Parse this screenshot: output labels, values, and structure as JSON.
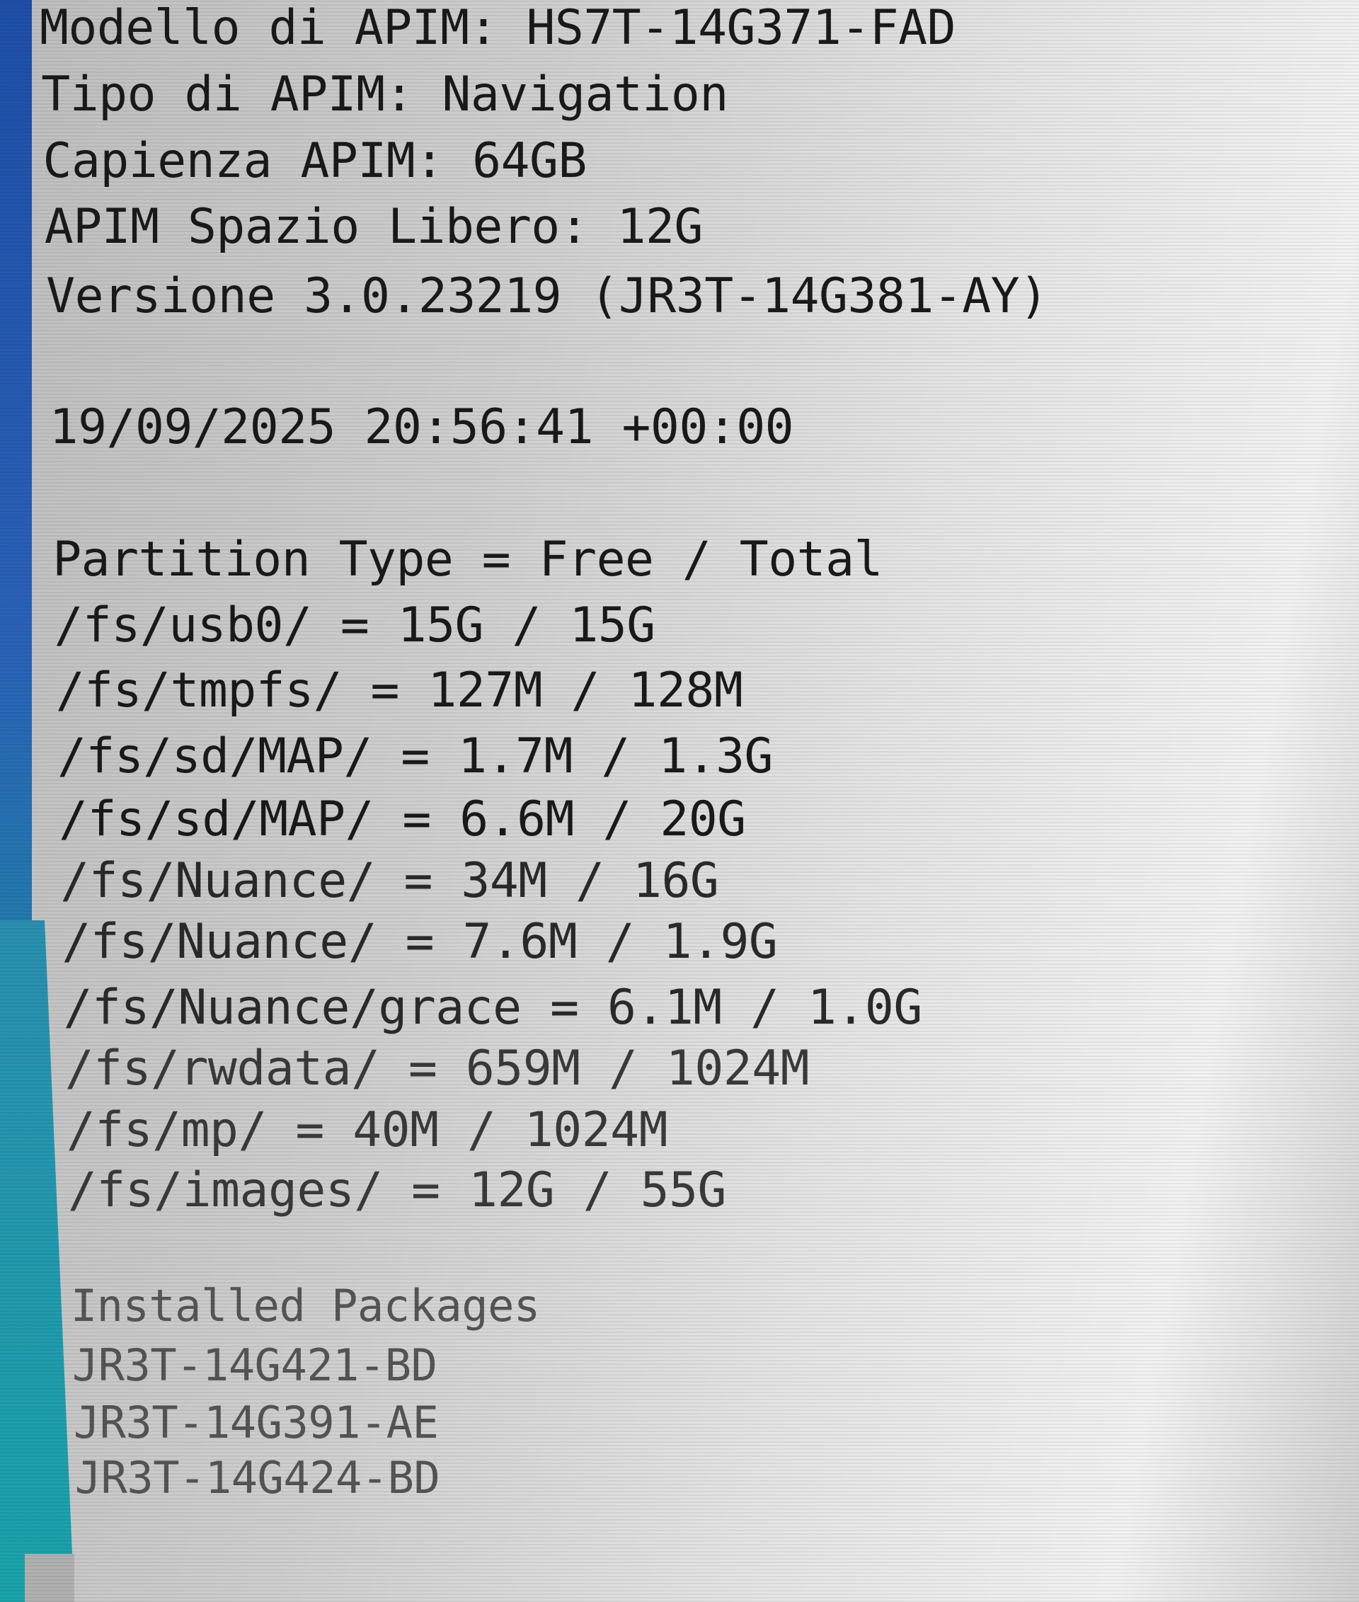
{
  "info": {
    "model": "Modello di APIM: HS7T-14G371-FAD",
    "type": "Tipo di APIM: Navigation",
    "capacity": "Capienza APIM: 64GB",
    "free_space": "APIM Spazio Libero: 12G",
    "version": "Versione 3.0.23219 (JR3T-14G381-AY)"
  },
  "timestamp": "19/09/2025 20:56:41 +00:00",
  "partitions": {
    "header": "Partition Type = Free / Total",
    "rows": [
      "/fs/usb0/ = 15G / 15G",
      "/fs/tmpfs/ = 127M / 128M",
      "/fs/sd/MAP/ = 1.7M / 1.3G",
      "/fs/sd/MAP/ = 6.6M / 20G",
      "/fs/Nuance/ = 34M / 16G",
      "/fs/Nuance/ = 7.6M / 1.9G",
      "/fs/Nuance/grace = 6.1M / 1.0G",
      "/fs/rwdata/ = 659M / 1024M",
      "/fs/mp/ = 40M / 1024M",
      "/fs/images/ = 12G / 55G"
    ]
  },
  "packages": {
    "header": "Installed Packages",
    "items": [
      "JR3T-14G421-BD",
      "JR3T-14G391-AE",
      "JR3T-14G424-BD"
    ]
  }
}
